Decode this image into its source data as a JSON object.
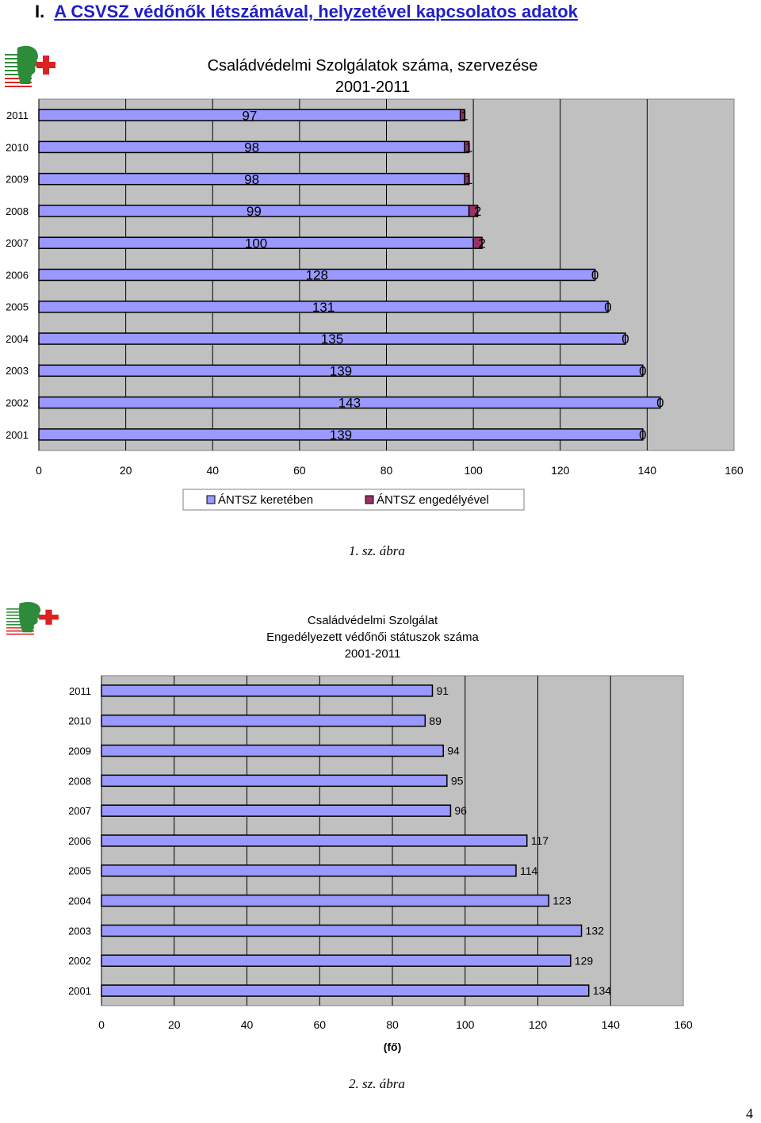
{
  "header": {
    "number": "I.",
    "title": "A CSVSZ védőnők létszámával, helyzetével kapcsolatos adatok"
  },
  "page_number": "4",
  "chart_data": [
    {
      "type": "bar",
      "orientation": "horizontal",
      "stacked": true,
      "title": "Családvédelmi Szolgálatok száma, szervezése",
      "subtitle": "2001-2011",
      "categories": [
        "2011",
        "2010",
        "2009",
        "2008",
        "2007",
        "2006",
        "2005",
        "2004",
        "2003",
        "2002",
        "2001"
      ],
      "series": [
        {
          "name": "ÁNTSZ keretében",
          "color": "#9999ff",
          "values": [
            97,
            98,
            98,
            99,
            100,
            128,
            131,
            135,
            139,
            143,
            139
          ]
        },
        {
          "name": "ÁNTSZ engedélyével",
          "color": "#993366",
          "values": [
            1,
            1,
            1,
            2,
            2,
            0,
            0,
            0,
            0,
            0,
            0
          ]
        }
      ],
      "xlim": [
        0,
        160
      ],
      "xticks": [
        0,
        20,
        40,
        60,
        80,
        100,
        120,
        140,
        160
      ],
      "grid": true,
      "legend": "bottom",
      "caption": "1.   sz. ábra"
    },
    {
      "type": "bar",
      "orientation": "horizontal",
      "title": "Családvédelmi Szolgálat",
      "subtitle": "Engedélyezett védőnői státuszok száma",
      "subtitle2": "2001-2011",
      "xlabel": "(fő)",
      "categories": [
        "2011",
        "2010",
        "2009",
        "2008",
        "2007",
        "2006",
        "2005",
        "2004",
        "2003",
        "2002",
        "2001"
      ],
      "series": [
        {
          "color": "#9999ff",
          "values": [
            91,
            89,
            94,
            95,
            96,
            117,
            114,
            123,
            132,
            129,
            134
          ]
        }
      ],
      "xlim": [
        0,
        160
      ],
      "xticks": [
        0,
        20,
        40,
        60,
        80,
        100,
        120,
        140,
        160
      ],
      "grid": true,
      "caption": "2.   sz. ábra"
    }
  ]
}
